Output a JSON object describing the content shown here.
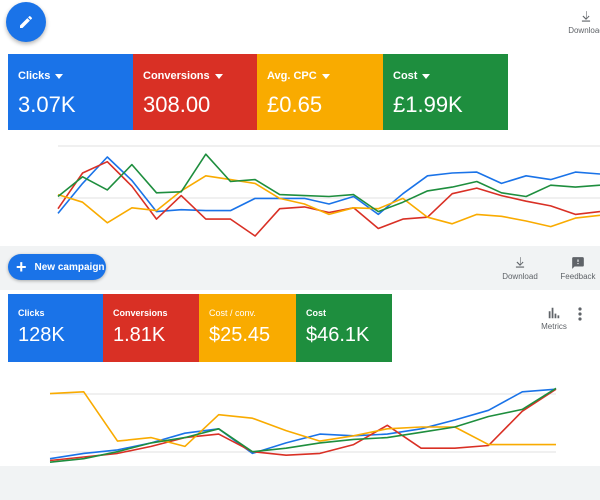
{
  "toolbar_top": {
    "download_label": "Download"
  },
  "cards_top": [
    {
      "label": "Clicks",
      "value": "3.07K",
      "color": "#1a73e8"
    },
    {
      "label": "Conversions",
      "value": "308.00",
      "color": "#d93025"
    },
    {
      "label": "Avg. CPC",
      "value": "£0.65",
      "color": "#f9ab00"
    },
    {
      "label": "Cost",
      "value": "£1.99K",
      "color": "#1e8e3e"
    }
  ],
  "new_campaign": {
    "label": "New campaign"
  },
  "toolbar_bottom": {
    "download_label": "Download",
    "feedback_label": "Feedback",
    "metrics_label": "Metrics"
  },
  "cards_bottom": [
    {
      "label": "Clicks",
      "value": "128K",
      "color": "#1a73e8"
    },
    {
      "label": "Conversions",
      "value": "1.81K",
      "color": "#d93025"
    },
    {
      "label": "Cost / conv.",
      "value": "$25.45",
      "color": "#f9ab00"
    },
    {
      "label": "Cost",
      "value": "$46.1K",
      "color": "#1e8e3e"
    }
  ],
  "icons": {
    "fab": "pencil-icon",
    "download": "download-icon",
    "feedback": "feedback-icon",
    "metrics": "metrics-icon",
    "more": "more-vert-icon"
  },
  "chart_data": [
    {
      "type": "line",
      "x": [
        1,
        2,
        3,
        4,
        5,
        6,
        7,
        8,
        9,
        10,
        11,
        12,
        13,
        14,
        15,
        16,
        17,
        18,
        19,
        20,
        21,
        22,
        23
      ],
      "series": [
        {
          "color": "#1a73e8",
          "values": [
            24,
            56,
            84,
            59,
            26,
            28,
            27,
            27,
            40,
            40,
            40,
            34,
            42,
            23,
            45,
            64,
            67,
            68,
            56,
            64,
            60,
            68,
            66
          ]
        },
        {
          "color": "#d93025",
          "values": [
            29,
            67,
            79,
            53,
            18,
            43,
            18,
            18,
            0,
            29,
            31,
            25,
            30,
            8,
            18,
            20,
            45,
            51,
            43,
            37,
            32,
            23,
            26
          ]
        },
        {
          "color": "#f9ab00",
          "values": [
            44,
            36,
            14,
            30,
            27,
            48,
            64,
            60,
            56,
            40,
            34,
            23,
            30,
            29,
            40,
            20,
            13,
            23,
            21,
            16,
            10,
            19,
            22
          ]
        },
        {
          "color": "#1e8e3e",
          "values": [
            42,
            63,
            49,
            76,
            46,
            47,
            87,
            58,
            60,
            44,
            43,
            42,
            44,
            26,
            36,
            48,
            52,
            58,
            46,
            42,
            54,
            52,
            54
          ]
        }
      ]
    },
    {
      "type": "line",
      "x": [
        1,
        2,
        3,
        4,
        5,
        6,
        7,
        8,
        9,
        10,
        11,
        12,
        13,
        14,
        15,
        16
      ],
      "series": [
        {
          "color": "#1a73e8",
          "values": [
            6,
            12,
            16,
            24,
            35,
            40,
            12,
            24,
            34,
            32,
            34,
            40,
            50,
            61,
            82,
            85
          ]
        },
        {
          "color": "#d93025",
          "values": [
            4,
            8,
            12,
            20,
            30,
            34,
            14,
            10,
            12,
            22,
            44,
            18,
            18,
            21,
            60,
            85
          ]
        },
        {
          "color": "#f9ab00",
          "values": [
            80,
            82,
            26,
            30,
            20,
            56,
            52,
            38,
            26,
            32,
            40,
            42,
            42,
            22,
            22,
            22
          ]
        },
        {
          "color": "#1e8e3e",
          "values": [
            2,
            6,
            14,
            24,
            30,
            40,
            14,
            18,
            24,
            28,
            30,
            36,
            42,
            54,
            62,
            86
          ]
        }
      ]
    }
  ]
}
